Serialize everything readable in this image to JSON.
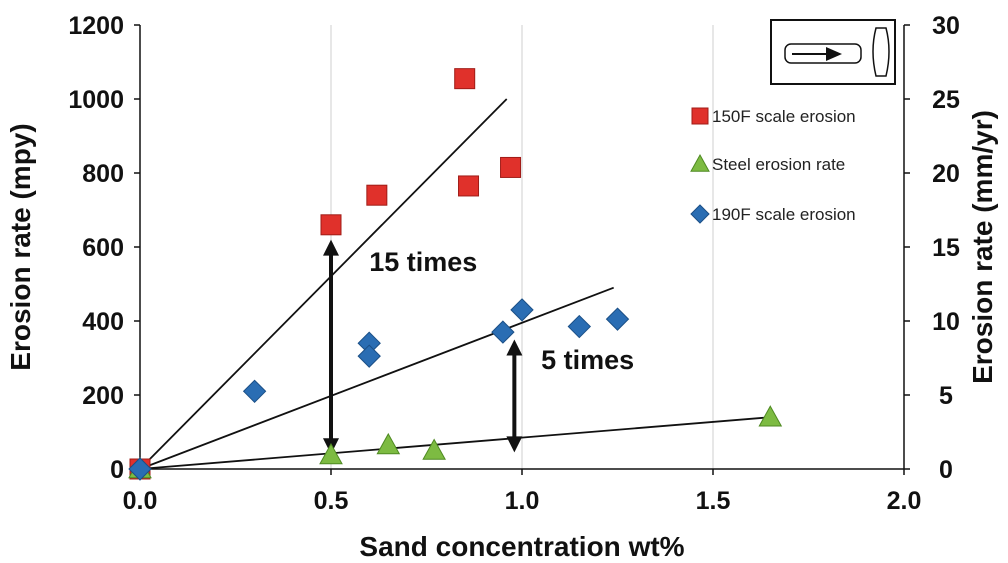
{
  "chart_data": {
    "type": "scatter",
    "title": "",
    "xlabel": "Sand concentration wt%",
    "ylabel": "Erosion rate (mpy)",
    "y2label": "Erosion rate (mm/yr)",
    "xlim": [
      0,
      2
    ],
    "ylim": [
      0,
      1200
    ],
    "y2lim": [
      0,
      30
    ],
    "xticks": [
      "0.0",
      "0.5",
      "1.0",
      "1.5",
      "2.0"
    ],
    "yticks": [
      "0",
      "200",
      "400",
      "600",
      "800",
      "1000",
      "1200"
    ],
    "y2ticks": [
      "0",
      "5",
      "10",
      "15",
      "20",
      "25",
      "30"
    ],
    "grid": "vertical lines",
    "legend_position": "right",
    "series": [
      {
        "name": "150F scale erosion",
        "marker": "square",
        "color": "#e0312b",
        "points": [
          [
            0.0,
            0
          ],
          [
            0.5,
            660
          ],
          [
            0.62,
            740
          ],
          [
            0.85,
            1055
          ],
          [
            0.86,
            765
          ],
          [
            0.97,
            815
          ]
        ]
      },
      {
        "name": "Steel erosion rate",
        "marker": "triangle",
        "color": "#7dbb42",
        "points": [
          [
            0.0,
            0
          ],
          [
            0.5,
            38
          ],
          [
            0.65,
            65
          ],
          [
            0.77,
            50
          ],
          [
            1.65,
            140
          ]
        ]
      },
      {
        "name": "190F scale erosion",
        "marker": "diamond",
        "color": "#2a6db3",
        "points": [
          [
            0.0,
            0
          ],
          [
            0.3,
            210
          ],
          [
            0.6,
            340
          ],
          [
            0.6,
            305
          ],
          [
            0.95,
            370
          ],
          [
            1.0,
            430
          ],
          [
            1.15,
            385
          ],
          [
            1.25,
            405
          ]
        ]
      }
    ],
    "trendlines": [
      {
        "from": [
          0.0,
          0
        ],
        "to": [
          0.96,
          1000
        ]
      },
      {
        "from": [
          0.0,
          0
        ],
        "to": [
          1.24,
          490
        ]
      },
      {
        "from": [
          0.0,
          0
        ],
        "to": [
          1.65,
          140
        ]
      }
    ],
    "annotations": [
      {
        "text": "15 times",
        "x": 0.6,
        "y": 535,
        "arrow_from": [
          0.5,
          620
        ],
        "arrow_to": [
          0.5,
          40
        ]
      },
      {
        "text": "5 times",
        "x": 1.05,
        "y": 270,
        "arrow_from": [
          0.98,
          350
        ],
        "arrow_to": [
          0.98,
          45
        ]
      }
    ],
    "inset_icon": "pipe-with-arrow-icon"
  }
}
